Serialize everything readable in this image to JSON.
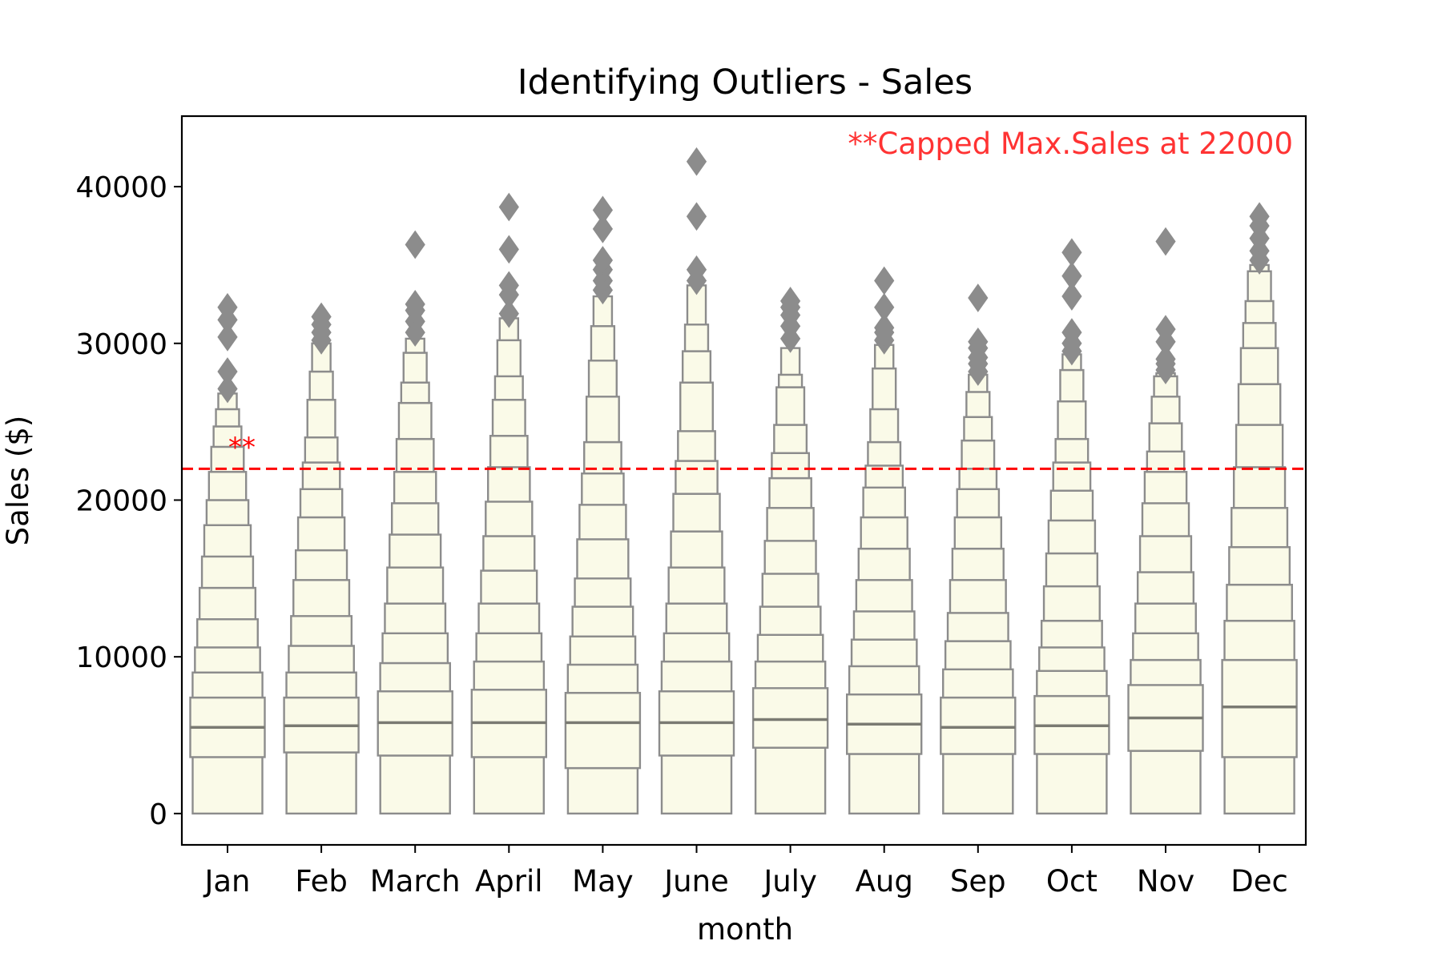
{
  "chart_data": {
    "type": "boxen",
    "title": "Identifying Outliers - Sales",
    "xlabel": "month",
    "ylabel": "Sales ($)",
    "ylim": [
      -2000,
      44500
    ],
    "yticks": [
      0,
      10000,
      20000,
      30000,
      40000
    ],
    "categories": [
      "Jan",
      "Feb",
      "March",
      "April",
      "May",
      "June",
      "July",
      "Aug",
      "Sep",
      "Oct",
      "Nov",
      "Dec"
    ],
    "reference_line": {
      "value": 22000,
      "color": "#ff0000",
      "style": "dashed"
    },
    "annotation": {
      "text": "**Capped Max.Sales at 22000",
      "color": "#ff3333",
      "placement": "top-right"
    },
    "marker_annotation": {
      "text": "**",
      "category": "Jan",
      "value": 23800,
      "color": "#ff0000"
    },
    "colors": {
      "box_fill": "#fafae8",
      "box_edge": "#8c8c8c",
      "median": "#7a7a72",
      "outlier": "#8c8c8c"
    },
    "series": [
      {
        "category": "Jan",
        "median": 5500,
        "levels": [
          [
            3600,
            7400
          ],
          [
            9000
          ],
          [
            10600
          ],
          [
            12400
          ],
          [
            14400
          ],
          [
            16400
          ],
          [
            18400
          ],
          [
            20000
          ],
          [
            21800
          ],
          [
            23400
          ],
          [
            24700
          ],
          [
            25800
          ],
          [
            26800
          ]
        ],
        "outliers": [
          27100,
          28200,
          30400,
          31500,
          32300
        ]
      },
      {
        "category": "Feb",
        "median": 5600,
        "levels": [
          [
            3900,
            7400
          ],
          [
            9000
          ],
          [
            10700
          ],
          [
            12600
          ],
          [
            14900
          ],
          [
            16800
          ],
          [
            18900
          ],
          [
            20700
          ],
          [
            22400
          ],
          [
            24000
          ],
          [
            26400
          ],
          [
            28200
          ],
          [
            30000
          ]
        ],
        "outliers": [
          30200,
          30700,
          31200,
          31700
        ]
      },
      {
        "category": "March",
        "median": 5800,
        "levels": [
          [
            3700,
            7800
          ],
          [
            9600
          ],
          [
            11500
          ],
          [
            13400
          ],
          [
            15700
          ],
          [
            17800
          ],
          [
            19800
          ],
          [
            21800
          ],
          [
            23900
          ],
          [
            26200
          ],
          [
            27500
          ],
          [
            29400
          ],
          [
            30300
          ]
        ],
        "outliers": [
          30700,
          31400,
          32100,
          32500,
          36300
        ]
      },
      {
        "category": "April",
        "median": 5800,
        "levels": [
          [
            3600,
            7900
          ],
          [
            9700
          ],
          [
            11500
          ],
          [
            13400
          ],
          [
            15500
          ],
          [
            17700
          ],
          [
            19900
          ],
          [
            22100
          ],
          [
            24100
          ],
          [
            26400
          ],
          [
            27900
          ],
          [
            30200
          ],
          [
            31600
          ]
        ],
        "outliers": [
          31900,
          33100,
          33700,
          36000,
          38700
        ]
      },
      {
        "category": "May",
        "median": 5800,
        "levels": [
          [
            2900,
            7700
          ],
          [
            9500
          ],
          [
            11300
          ],
          [
            13200
          ],
          [
            15000
          ],
          [
            17500
          ],
          [
            19700
          ],
          [
            21700
          ],
          [
            23700
          ],
          [
            26600
          ],
          [
            28900
          ],
          [
            31100
          ],
          [
            33000
          ]
        ],
        "outliers": [
          33400,
          34000,
          34700,
          35300,
          37300,
          38500
        ]
      },
      {
        "category": "June",
        "median": 5800,
        "levels": [
          [
            3700,
            7800
          ],
          [
            9700
          ],
          [
            11500
          ],
          [
            13400
          ],
          [
            15700
          ],
          [
            18000
          ],
          [
            20400
          ],
          [
            22500
          ],
          [
            24400
          ],
          [
            27500
          ],
          [
            29500
          ],
          [
            31200
          ],
          [
            33700
          ]
        ],
        "outliers": [
          34000,
          34700,
          38100,
          41600
        ]
      },
      {
        "category": "July",
        "median": 6000,
        "levels": [
          [
            4200,
            8000
          ],
          [
            9700
          ],
          [
            11400
          ],
          [
            13200
          ],
          [
            15300
          ],
          [
            17400
          ],
          [
            19500
          ],
          [
            21400
          ],
          [
            23000
          ],
          [
            24800
          ],
          [
            27200
          ],
          [
            28000
          ],
          [
            29700
          ]
        ],
        "outliers": [
          30300,
          31100,
          31800,
          32300,
          32700
        ]
      },
      {
        "category": "Aug",
        "median": 5700,
        "levels": [
          [
            3800,
            7600
          ],
          [
            9400
          ],
          [
            11100
          ],
          [
            12900
          ],
          [
            14900
          ],
          [
            16900
          ],
          [
            18900
          ],
          [
            20800
          ],
          [
            22200
          ],
          [
            23700
          ],
          [
            25800
          ],
          [
            28400
          ],
          [
            29900
          ]
        ],
        "outliers": [
          30200,
          30700,
          31000,
          32300,
          34000
        ]
      },
      {
        "category": "Sep",
        "median": 5500,
        "levels": [
          [
            3800,
            7400
          ],
          [
            9200
          ],
          [
            11000
          ],
          [
            12800
          ],
          [
            14900
          ],
          [
            16900
          ],
          [
            18900
          ],
          [
            20700
          ],
          [
            22000
          ],
          [
            23800
          ],
          [
            25300
          ],
          [
            26900
          ],
          [
            28000
          ]
        ],
        "outliers": [
          28200,
          28700,
          29100,
          29700,
          30100,
          32900
        ]
      },
      {
        "category": "Oct",
        "median": 5600,
        "levels": [
          [
            3800,
            7500
          ],
          [
            9100
          ],
          [
            10600
          ],
          [
            12300
          ],
          [
            14500
          ],
          [
            16600
          ],
          [
            18700
          ],
          [
            20600
          ],
          [
            22400
          ],
          [
            23900
          ],
          [
            26300
          ],
          [
            28300
          ],
          [
            29300
          ]
        ],
        "outliers": [
          29500,
          30000,
          30700,
          33000,
          34300,
          35800
        ]
      },
      {
        "category": "Nov",
        "median": 6100,
        "levels": [
          [
            4000,
            8200
          ],
          [
            9800
          ],
          [
            11500
          ],
          [
            13400
          ],
          [
            15400
          ],
          [
            17700
          ],
          [
            19800
          ],
          [
            21800
          ],
          [
            23100
          ],
          [
            24900
          ],
          [
            26600
          ],
          [
            27900
          ],
          [
            28100
          ]
        ],
        "outliers": [
          28300,
          28700,
          29000,
          30100,
          30900,
          36500
        ]
      },
      {
        "category": "Dec",
        "median": 6800,
        "levels": [
          [
            3600,
            9800
          ],
          [
            12300
          ],
          [
            14600
          ],
          [
            17000
          ],
          [
            19500
          ],
          [
            22100
          ],
          [
            24800
          ],
          [
            27400
          ],
          [
            29700
          ],
          [
            31300
          ],
          [
            32700
          ],
          [
            34600
          ],
          [
            35000
          ]
        ],
        "outliers": [
          35300,
          35900,
          36700,
          37500,
          38100
        ]
      }
    ]
  }
}
